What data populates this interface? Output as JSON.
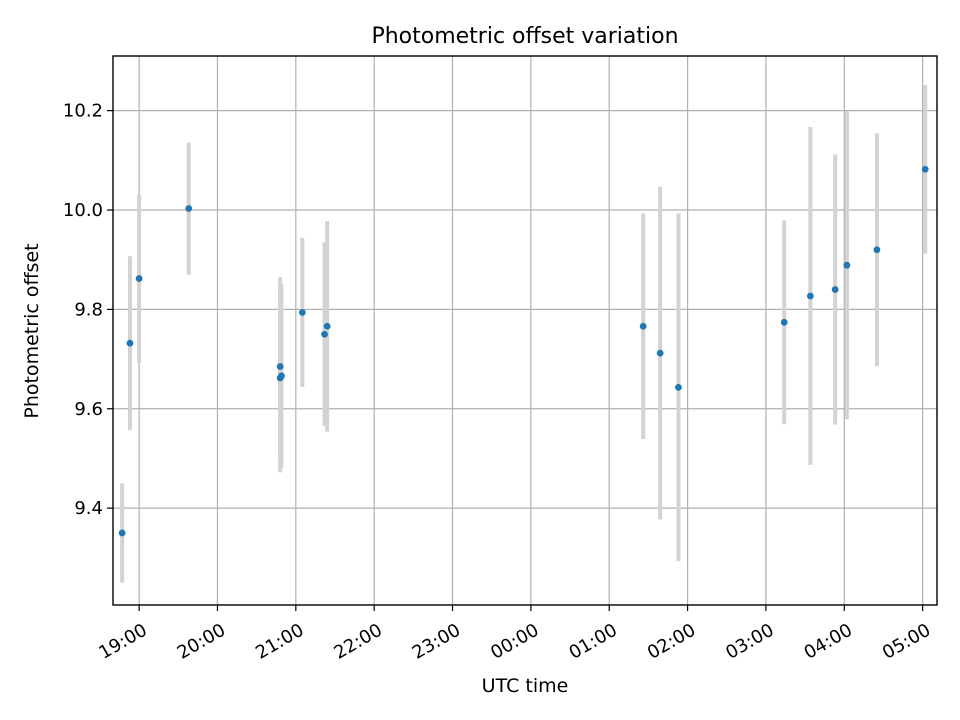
{
  "chart_data": {
    "type": "scatter",
    "title": "Photometric offset variation",
    "xlabel": "UTC time",
    "ylabel": "Photometric offset",
    "x_tick_labels": [
      "19:00",
      "20:00",
      "21:00",
      "22:00",
      "23:00",
      "00:00",
      "01:00",
      "02:00",
      "03:00",
      "04:00",
      "05:00"
    ],
    "y_tick_labels": [
      "9.4",
      "9.6",
      "9.8",
      "10.0",
      "10.2"
    ],
    "y_ticks": [
      9.4,
      9.6,
      9.8,
      10.0,
      10.2
    ],
    "grid": true,
    "xlim": [
      "18:40",
      "05:11"
    ],
    "ylim": [
      9.205,
      10.31
    ],
    "series": [
      {
        "points": [
          {
            "time": "18:47",
            "y": 9.35,
            "err": 0.1
          },
          {
            "time": "18:53",
            "y": 9.732,
            "err": 0.175
          },
          {
            "time": "19:00",
            "y": 9.862,
            "err": 0.17
          },
          {
            "time": "19:38",
            "y": 10.003,
            "err": 0.133
          },
          {
            "time": "20:48",
            "y": 9.662,
            "err": 0.19
          },
          {
            "time": "20:48",
            "y": 9.685,
            "err": 0.18
          },
          {
            "time": "20:49",
            "y": 9.666,
            "err": 0.185
          },
          {
            "time": "21:05",
            "y": 9.794,
            "err": 0.15
          },
          {
            "time": "21:22",
            "y": 9.75,
            "err": 0.185
          },
          {
            "time": "21:24",
            "y": 9.766,
            "err": 0.212
          },
          {
            "time": "01:26",
            "y": 9.766,
            "err": 0.227
          },
          {
            "time": "01:39",
            "y": 9.712,
            "err": 0.335
          },
          {
            "time": "01:53",
            "y": 9.643,
            "err": 0.35
          },
          {
            "time": "03:14",
            "y": 9.774,
            "err": 0.205
          },
          {
            "time": "03:34",
            "y": 9.827,
            "err": 0.34
          },
          {
            "time": "03:53",
            "y": 9.84,
            "err": 0.272
          },
          {
            "time": "04:02",
            "y": 9.889,
            "err": 0.31
          },
          {
            "time": "04:25",
            "y": 9.92,
            "err": 0.234
          },
          {
            "time": "05:02",
            "y": 10.082,
            "err": 0.17
          }
        ]
      }
    ]
  },
  "colors": {
    "marker": "#1f77b4",
    "errorbar": "#d3d3d3",
    "grid": "#b0b0b0",
    "axes": "#000000"
  }
}
